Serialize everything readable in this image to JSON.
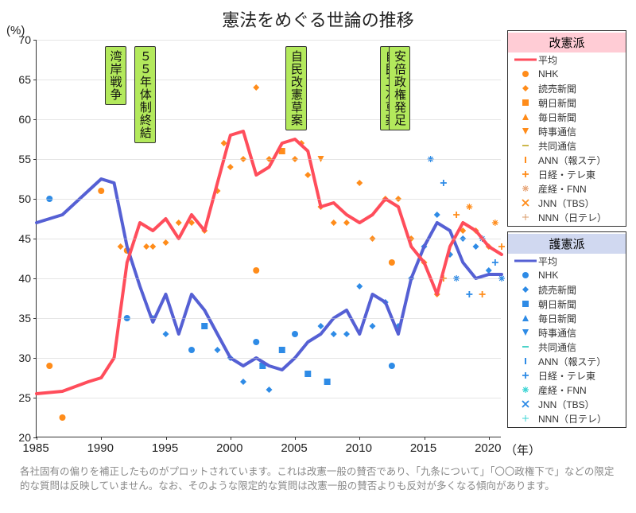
{
  "title": "憲法をめぐる世論の推移",
  "y_unit": "(%)",
  "x_unit": "（年）",
  "footnote": "各社固有の偏りを補正したものがプロットされています。これは改憲一般の賛否であり、「九条について」「〇〇政権下で」などの限定的な質問は反映していません。なお、そのような限定的な質問は改憲一般の賛否よりも反対が多くなる傾向があります。",
  "chart": {
    "type": "line-scatter",
    "xlim": [
      1985,
      2021
    ],
    "ylim": [
      20,
      70
    ],
    "xticks": [
      1985,
      1990,
      1995,
      2000,
      2005,
      2010,
      2015,
      2020
    ],
    "yticks": [
      20,
      25,
      30,
      35,
      40,
      45,
      50,
      55,
      60,
      65,
      70
    ],
    "background": "#ffffff",
    "grid_color": "#cccccc",
    "events": [
      {
        "year": 1991,
        "label": "湾岸戦争"
      },
      {
        "year": 1993.3,
        "label": "５５年体制終結"
      },
      {
        "year": 2005,
        "label": "自民改憲草案"
      },
      {
        "year": 2012.3,
        "label": "自民二次草案"
      },
      {
        "year": 2013,
        "label": "安倍政権発足"
      }
    ],
    "avg_pro": {
      "color": "#ff4d5b",
      "width": 4,
      "points": [
        [
          1985,
          25.5
        ],
        [
          1987,
          25.8
        ],
        [
          1989,
          27
        ],
        [
          1990,
          27.5
        ],
        [
          1991,
          30
        ],
        [
          1992,
          42
        ],
        [
          1993,
          47
        ],
        [
          1994,
          46
        ],
        [
          1995,
          47.5
        ],
        [
          1996,
          45
        ],
        [
          1997,
          48
        ],
        [
          1998,
          46
        ],
        [
          1999,
          52
        ],
        [
          2000,
          58
        ],
        [
          2001,
          58.5
        ],
        [
          2002,
          53
        ],
        [
          2003,
          54
        ],
        [
          2004,
          57
        ],
        [
          2005,
          57.5
        ],
        [
          2006,
          56
        ],
        [
          2007,
          49
        ],
        [
          2008,
          49.5
        ],
        [
          2009,
          48
        ],
        [
          2010,
          47
        ],
        [
          2011,
          48
        ],
        [
          2012,
          50
        ],
        [
          2013,
          49
        ],
        [
          2014,
          44
        ],
        [
          2015,
          42
        ],
        [
          2016,
          38
        ],
        [
          2017,
          44
        ],
        [
          2018,
          47
        ],
        [
          2019,
          46
        ],
        [
          2020,
          44
        ],
        [
          2021,
          43
        ]
      ]
    },
    "avg_anti": {
      "color": "#5560d4",
      "width": 4,
      "points": [
        [
          1985,
          47
        ],
        [
          1987,
          48
        ],
        [
          1989,
          51
        ],
        [
          1990,
          52.5
        ],
        [
          1991,
          52
        ],
        [
          1992,
          44
        ],
        [
          1993,
          39
        ],
        [
          1994,
          34.5
        ],
        [
          1995,
          38
        ],
        [
          1996,
          33
        ],
        [
          1997,
          38
        ],
        [
          1998,
          36
        ],
        [
          1999,
          33
        ],
        [
          2000,
          30
        ],
        [
          2001,
          29
        ],
        [
          2002,
          30
        ],
        [
          2003,
          29
        ],
        [
          2004,
          28.5
        ],
        [
          2005,
          30
        ],
        [
          2006,
          32
        ],
        [
          2007,
          33
        ],
        [
          2008,
          35
        ],
        [
          2009,
          36
        ],
        [
          2010,
          33
        ],
        [
          2011,
          38
        ],
        [
          2012,
          37
        ],
        [
          2013,
          33
        ],
        [
          2014,
          40
        ],
        [
          2015,
          44
        ],
        [
          2016,
          47
        ],
        [
          2017,
          46
        ],
        [
          2018,
          42
        ],
        [
          2019,
          40
        ],
        [
          2020,
          40.5
        ],
        [
          2021,
          40.5
        ]
      ]
    },
    "scatter_pro": {
      "color_main": "#ff8c1a",
      "points": [
        [
          1986,
          29,
          "circle"
        ],
        [
          1987,
          22.5,
          "circle"
        ],
        [
          1990,
          51,
          "circle"
        ],
        [
          1991.5,
          44,
          "diamond"
        ],
        [
          1992,
          43.5,
          "circle"
        ],
        [
          1993.5,
          44,
          "diamond"
        ],
        [
          1994,
          44,
          "diamond"
        ],
        [
          1995,
          44.5,
          "diamond"
        ],
        [
          1996,
          47,
          "diamond"
        ],
        [
          1997,
          47,
          "diamond"
        ],
        [
          1998,
          46,
          "diamond"
        ],
        [
          1999,
          51,
          "diamond"
        ],
        [
          1999.5,
          57,
          "diamond"
        ],
        [
          2000,
          54,
          "diamond"
        ],
        [
          2001,
          55,
          "diamond"
        ],
        [
          2002,
          64,
          "diamond"
        ],
        [
          2002,
          41,
          "circle"
        ],
        [
          2003,
          55,
          "diamond"
        ],
        [
          2004,
          56,
          "square"
        ],
        [
          2005,
          55,
          "diamond"
        ],
        [
          2005.5,
          57,
          "diamond"
        ],
        [
          2006,
          53,
          "diamond"
        ],
        [
          2007,
          49,
          "diamond"
        ],
        [
          2007,
          55,
          "triangle-down"
        ],
        [
          2008,
          47,
          "diamond"
        ],
        [
          2009,
          47,
          "diamond"
        ],
        [
          2010,
          52,
          "diamond"
        ],
        [
          2011,
          45,
          "diamond"
        ],
        [
          2012,
          50,
          "diamond"
        ],
        [
          2012.5,
          42,
          "circle"
        ],
        [
          2013,
          50,
          "diamond"
        ],
        [
          2014,
          45,
          "diamond"
        ],
        [
          2015,
          42,
          "diamond"
        ],
        [
          2016,
          38,
          "diamond"
        ],
        [
          2016.5,
          40,
          "plus"
        ],
        [
          2017,
          43,
          "diamond"
        ],
        [
          2017.5,
          48,
          "plus"
        ],
        [
          2018,
          46,
          "diamond"
        ],
        [
          2018.5,
          49,
          "star"
        ],
        [
          2019,
          46,
          "diamond"
        ],
        [
          2019.5,
          38,
          "plus"
        ],
        [
          2020,
          44,
          "diamond"
        ],
        [
          2020.5,
          47,
          "star"
        ],
        [
          2021,
          44,
          "plus"
        ]
      ]
    },
    "scatter_anti": {
      "color_main": "#2e8be6",
      "points": [
        [
          1986,
          50,
          "circle"
        ],
        [
          1992,
          35,
          "circle"
        ],
        [
          1994,
          35,
          "diamond"
        ],
        [
          1995,
          33,
          "diamond"
        ],
        [
          1997,
          31,
          "circle"
        ],
        [
          1998,
          34,
          "square"
        ],
        [
          1999,
          31,
          "diamond"
        ],
        [
          2000,
          30,
          "diamond"
        ],
        [
          2001,
          27,
          "diamond"
        ],
        [
          2002,
          32,
          "circle"
        ],
        [
          2002.5,
          29,
          "square"
        ],
        [
          2003,
          26,
          "diamond"
        ],
        [
          2004,
          31,
          "square"
        ],
        [
          2005,
          33,
          "circle"
        ],
        [
          2006,
          28,
          "square"
        ],
        [
          2007,
          34,
          "diamond"
        ],
        [
          2007.5,
          27,
          "square"
        ],
        [
          2008,
          33,
          "diamond"
        ],
        [
          2009,
          33,
          "diamond"
        ],
        [
          2010,
          39,
          "diamond"
        ],
        [
          2011,
          34,
          "diamond"
        ],
        [
          2012,
          37,
          "diamond"
        ],
        [
          2012.5,
          29,
          "circle"
        ],
        [
          2013,
          34,
          "diamond"
        ],
        [
          2014,
          40,
          "diamond"
        ],
        [
          2015,
          44,
          "diamond"
        ],
        [
          2015.5,
          55,
          "star"
        ],
        [
          2016,
          48,
          "diamond"
        ],
        [
          2016.5,
          52,
          "plus"
        ],
        [
          2017,
          43,
          "diamond"
        ],
        [
          2017.5,
          40,
          "star"
        ],
        [
          2018,
          45,
          "diamond"
        ],
        [
          2018.5,
          38,
          "plus"
        ],
        [
          2019,
          44,
          "diamond"
        ],
        [
          2019.5,
          45,
          "star"
        ],
        [
          2020,
          41,
          "diamond"
        ],
        [
          2020.5,
          42,
          "plus"
        ],
        [
          2021,
          40,
          "star"
        ]
      ]
    }
  },
  "legends": [
    {
      "header": "改憲派",
      "header_class": "pro",
      "items": [
        {
          "symbol": "line",
          "color": "#ff4d5b",
          "label": "平均"
        },
        {
          "symbol": "circle",
          "color": "#ff8c1a",
          "label": "NHK"
        },
        {
          "symbol": "diamond",
          "color": "#ff8c1a",
          "label": "読売新聞"
        },
        {
          "symbol": "square",
          "color": "#ff8c1a",
          "label": "朝日新聞"
        },
        {
          "symbol": "triangle-up",
          "color": "#ff8c1a",
          "label": "毎日新聞"
        },
        {
          "symbol": "triangle-down",
          "color": "#ff8c1a",
          "label": "時事通信"
        },
        {
          "symbol": "dash",
          "color": "#ccb84d",
          "label": "共同通信"
        },
        {
          "symbol": "vbar",
          "color": "#ff8c1a",
          "label": "ANN（報ステ）"
        },
        {
          "symbol": "plus",
          "color": "#ff8c1a",
          "label": "日経・テレ東"
        },
        {
          "symbol": "star",
          "color": "#e8a87c",
          "label": "産経・FNN"
        },
        {
          "symbol": "x",
          "color": "#ff8c1a",
          "label": "JNN（TBS）"
        },
        {
          "symbol": "plus-thin",
          "color": "#d89b6a",
          "label": "NNN（日テレ）"
        }
      ]
    },
    {
      "header": "護憲派",
      "header_class": "anti",
      "items": [
        {
          "symbol": "line",
          "color": "#5560d4",
          "label": "平均"
        },
        {
          "symbol": "circle",
          "color": "#2e8be6",
          "label": "NHK"
        },
        {
          "symbol": "diamond",
          "color": "#2e8be6",
          "label": "読売新聞"
        },
        {
          "symbol": "square",
          "color": "#2e8be6",
          "label": "朝日新聞"
        },
        {
          "symbol": "triangle-up",
          "color": "#2e8be6",
          "label": "毎日新聞"
        },
        {
          "symbol": "triangle-down",
          "color": "#2e8be6",
          "label": "時事通信"
        },
        {
          "symbol": "dash",
          "color": "#4dd2c8",
          "label": "共同通信"
        },
        {
          "symbol": "vbar",
          "color": "#2e8be6",
          "label": "ANN（報ステ）"
        },
        {
          "symbol": "plus",
          "color": "#2e8be6",
          "label": "日経・テレ東"
        },
        {
          "symbol": "star",
          "color": "#3dd4d4",
          "label": "産経・FNN"
        },
        {
          "symbol": "x",
          "color": "#2e8be6",
          "label": "JNN（TBS）"
        },
        {
          "symbol": "plus-thin",
          "color": "#3dd4d4",
          "label": "NNN（日テレ）"
        }
      ]
    }
  ]
}
